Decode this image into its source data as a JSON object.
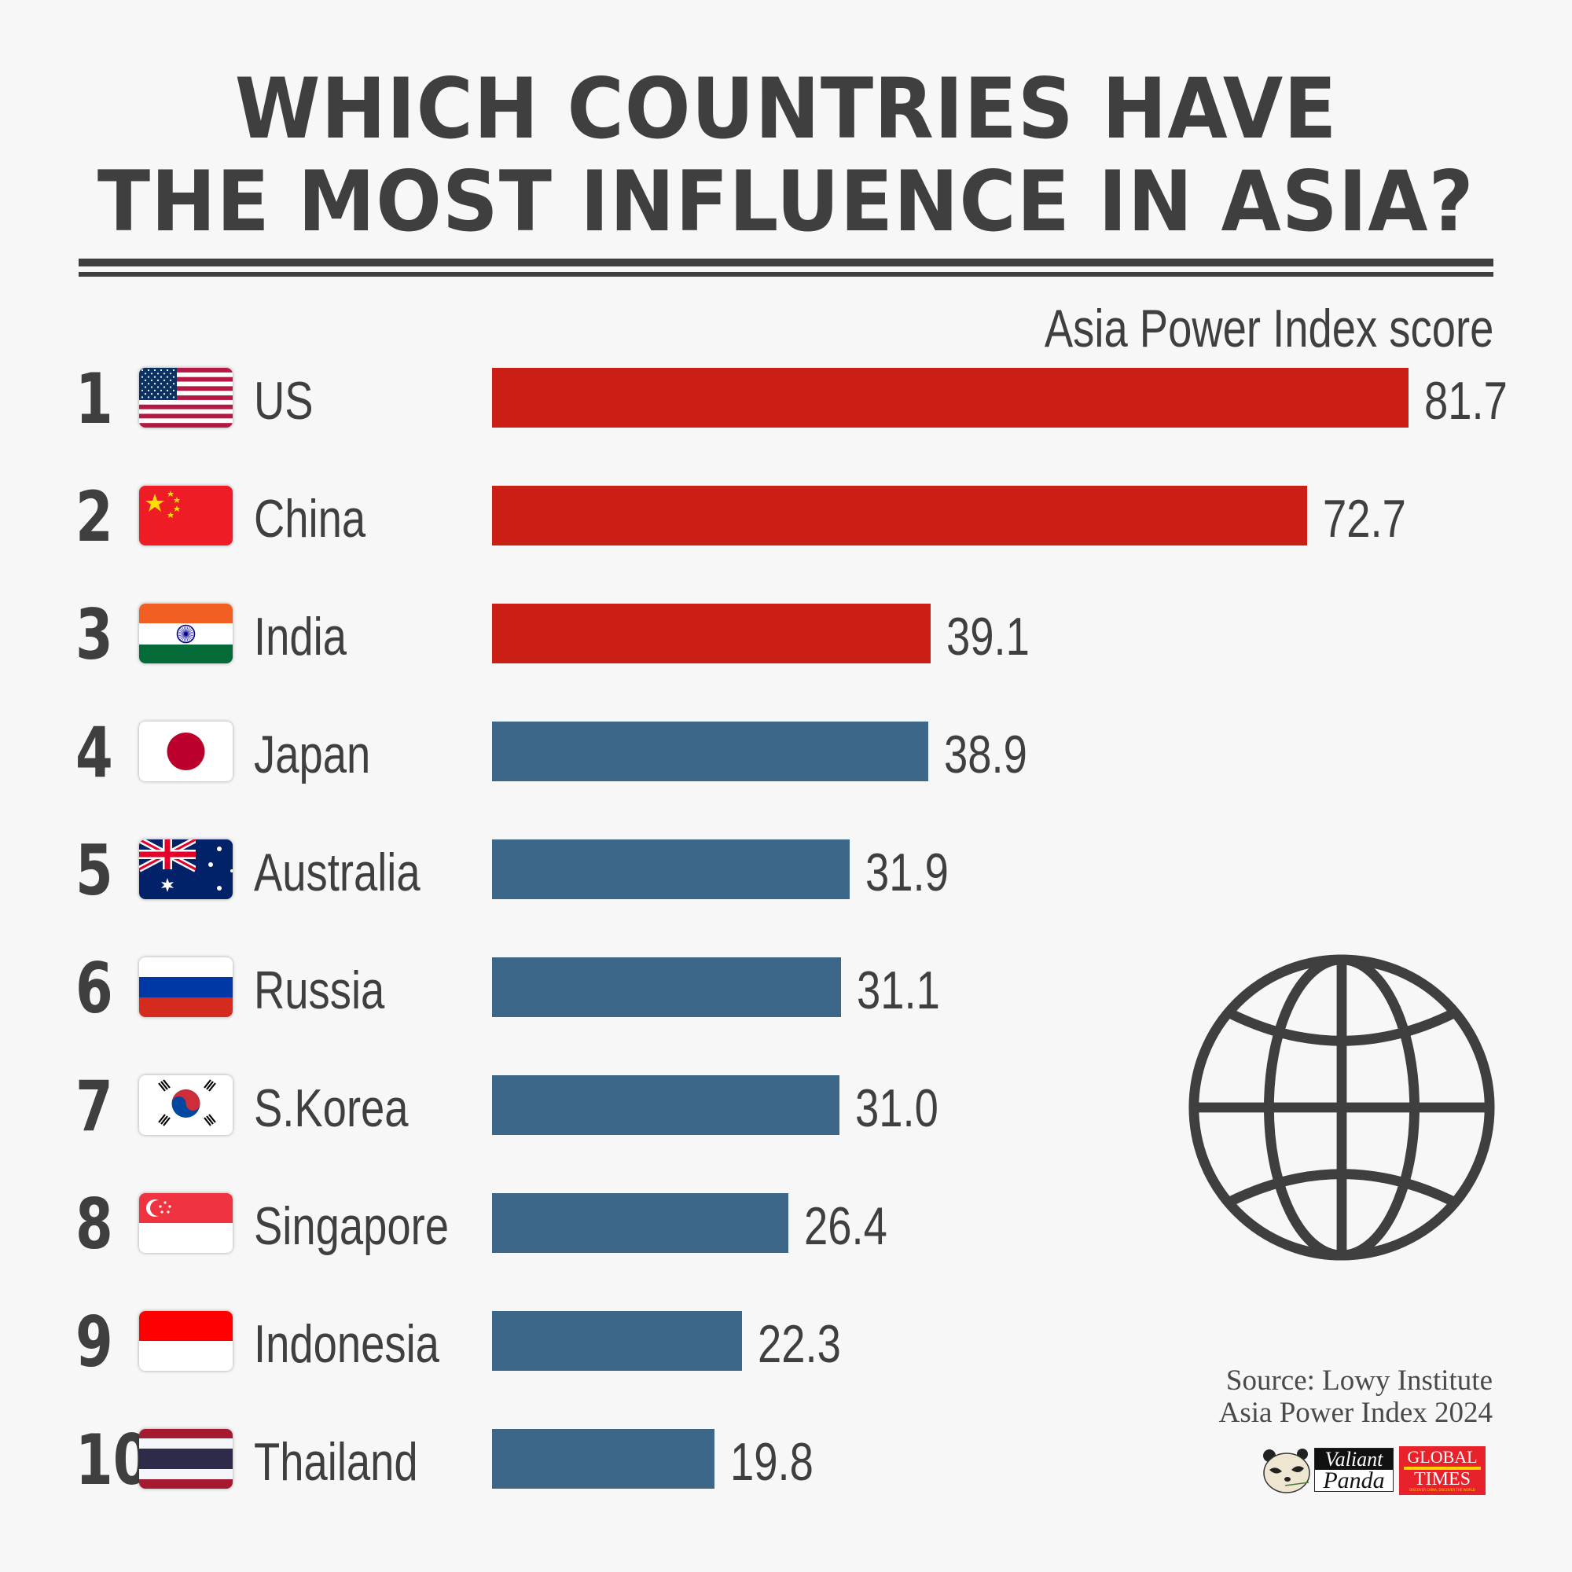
{
  "title": {
    "line1": "WHICH COUNTRIES HAVE",
    "line2": "THE MOST INFLUENCE IN ASIA?"
  },
  "subtitle": "Asia Power Index score",
  "colors": {
    "background": "#f7f7f7",
    "text": "#3f3f3f",
    "top3_bar": "#cb1f15",
    "other_bar": "#3d6788"
  },
  "rows": [
    {
      "rank": "1",
      "country": "US",
      "flag": "us-flag-icon",
      "value": "81.7",
      "color": "#cb1f15"
    },
    {
      "rank": "2",
      "country": "China",
      "flag": "china-flag-icon",
      "value": "72.7",
      "color": "#cb1f15"
    },
    {
      "rank": "3",
      "country": "India",
      "flag": "india-flag-icon",
      "value": "39.1",
      "color": "#cb1f15"
    },
    {
      "rank": "4",
      "country": "Japan",
      "flag": "japan-flag-icon",
      "value": "38.9",
      "color": "#3d6788"
    },
    {
      "rank": "5",
      "country": "Australia",
      "flag": "australia-flag-icon",
      "value": "31.9",
      "color": "#3d6788"
    },
    {
      "rank": "6",
      "country": "Russia",
      "flag": "russia-flag-icon",
      "value": "31.1",
      "color": "#3d6788"
    },
    {
      "rank": "7",
      "country": "S.Korea",
      "flag": "south-korea-flag-icon",
      "value": "31.0",
      "color": "#3d6788"
    },
    {
      "rank": "8",
      "country": "Singapore",
      "flag": "singapore-flag-icon",
      "value": "26.4",
      "color": "#3d6788"
    },
    {
      "rank": "9",
      "country": "Indonesia",
      "flag": "indonesia-flag-icon",
      "value": "22.3",
      "color": "#3d6788"
    },
    {
      "rank": "10",
      "country": "Thailand",
      "flag": "thailand-flag-icon",
      "value": "19.8",
      "color": "#3d6788"
    }
  ],
  "decoration": {
    "icon": "globe-icon"
  },
  "source": {
    "line1": "Source: Lowy Institute",
    "line2": "Asia Power Index 2024"
  },
  "logos": {
    "valiant_panda": {
      "top": "Valiant",
      "bottom": "Panda"
    },
    "global_times": {
      "line1": "GLOBAL",
      "line2": "TIMES",
      "tagline": "DISCOVER CHINA, DISCOVER THE WORLD"
    }
  },
  "chart_data": {
    "type": "bar",
    "orientation": "horizontal",
    "title": "WHICH COUNTRIES HAVE THE MOST INFLUENCE IN ASIA?",
    "subtitle": "Asia Power Index score",
    "categories": [
      "US",
      "China",
      "India",
      "Japan",
      "Australia",
      "Russia",
      "S.Korea",
      "Singapore",
      "Indonesia",
      "Thailand"
    ],
    "ranks": [
      1,
      2,
      3,
      4,
      5,
      6,
      7,
      8,
      9,
      10
    ],
    "values": [
      81.7,
      72.7,
      39.1,
      38.9,
      31.9,
      31.1,
      31.0,
      26.4,
      22.3,
      19.8
    ],
    "bar_colors": [
      "#cb1f15",
      "#cb1f15",
      "#cb1f15",
      "#3d6788",
      "#3d6788",
      "#3d6788",
      "#3d6788",
      "#3d6788",
      "#3d6788",
      "#3d6788"
    ],
    "xlabel": "",
    "ylabel": "",
    "xlim": [
      0,
      100
    ],
    "grid": false,
    "legend": "none",
    "data_labels": true,
    "source": "Source: Lowy Institute Asia Power Index 2024"
  }
}
